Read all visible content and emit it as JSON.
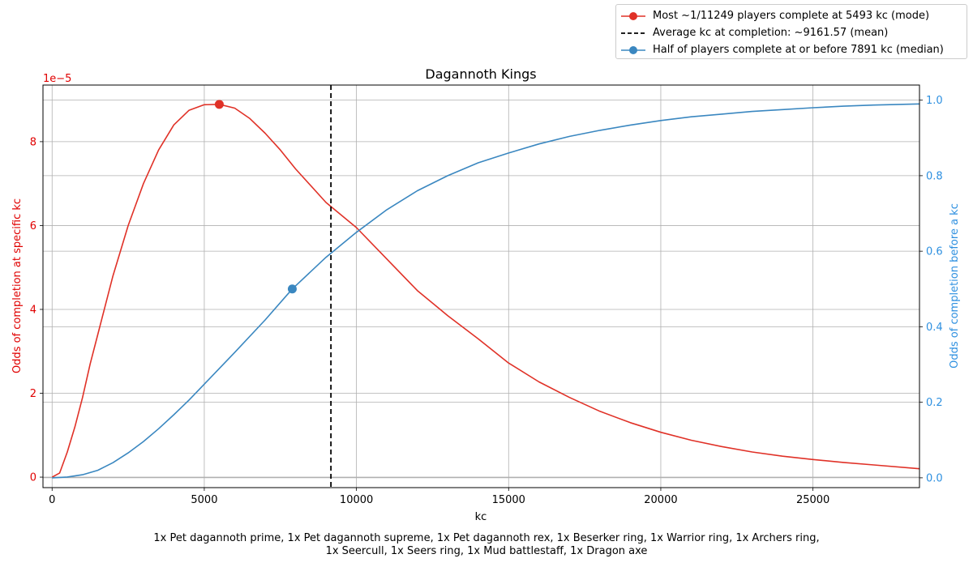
{
  "chart_data": {
    "type": "line",
    "title": "Dagannoth Kings",
    "xlabel": "kc",
    "ylabel_left": "Odds of completion at specific kc",
    "ylabel_right": "Odds of completion before a kc",
    "left_axis_offset_label": "1e−5",
    "xlim": [
      -300,
      28500
    ],
    "ylim_left": [
      -0.25,
      9.35
    ],
    "ylim_right": [
      -0.026,
      1.04
    ],
    "x_ticks": [
      0,
      5000,
      10000,
      15000,
      20000,
      25000
    ],
    "x_tick_labels": [
      "0",
      "5000",
      "10000",
      "15000",
      "20000",
      "25000"
    ],
    "y_left_ticks": [
      0,
      2,
      4,
      6,
      8
    ],
    "y_left_tick_labels": [
      "0",
      "2",
      "4",
      "6",
      "8"
    ],
    "y_right_ticks": [
      0.0,
      0.2,
      0.4,
      0.6,
      0.8,
      1.0
    ],
    "y_right_tick_labels": [
      "0.0",
      "0.2",
      "0.4",
      "0.6",
      "0.8",
      "1.0"
    ],
    "grid": true,
    "legend_placement": "top-right, outside plot",
    "colors": {
      "pdf": "#e03127",
      "cdf": "#3a87c0",
      "mean": "#000000",
      "left_axis": "#e00000",
      "right_axis": "#2e90e0",
      "grid": "#b0b0b0"
    },
    "series": [
      {
        "name": "Most ~1/11249 players complete at 5493 kc (mode)",
        "axis": "left",
        "x": [
          0,
          250,
          500,
          750,
          1000,
          1250,
          1500,
          2000,
          2500,
          3000,
          3500,
          4000,
          4500,
          5000,
          5493,
          6000,
          6500,
          7000,
          7500,
          8000,
          9000,
          10000,
          11000,
          12000,
          13000,
          14000,
          15000,
          16000,
          17000,
          18000,
          19000,
          20000,
          21000,
          22000,
          23000,
          24000,
          25000,
          26000,
          27000,
          28500
        ],
        "values": [
          0,
          0.1,
          0.6,
          1.2,
          1.9,
          2.7,
          3.4,
          4.8,
          6.0,
          7.0,
          7.8,
          8.4,
          8.75,
          8.88,
          8.89,
          8.8,
          8.55,
          8.2,
          7.8,
          7.35,
          6.55,
          5.95,
          5.2,
          4.45,
          3.85,
          3.3,
          2.72,
          2.27,
          1.9,
          1.57,
          1.3,
          1.07,
          0.88,
          0.73,
          0.6,
          0.5,
          0.42,
          0.35,
          0.29,
          0.2
        ],
        "marker": {
          "x": 5493,
          "y": 8.89
        }
      },
      {
        "name": "Half of players complete at or before 7891 kc (median)",
        "axis": "right",
        "x": [
          0,
          500,
          1000,
          1500,
          2000,
          2500,
          3000,
          3500,
          4000,
          4500,
          5000,
          5500,
          6000,
          7000,
          7891,
          9000,
          10000,
          11000,
          12000,
          13000,
          14000,
          15000,
          16000,
          17000,
          18000,
          19000,
          20000,
          21000,
          22000,
          23000,
          24000,
          25000,
          26000,
          27000,
          28500
        ],
        "values": [
          0,
          0.002,
          0.008,
          0.02,
          0.04,
          0.066,
          0.096,
          0.13,
          0.167,
          0.206,
          0.248,
          0.29,
          0.332,
          0.418,
          0.5,
          0.584,
          0.65,
          0.71,
          0.76,
          0.8,
          0.834,
          0.86,
          0.884,
          0.904,
          0.92,
          0.934,
          0.946,
          0.956,
          0.963,
          0.97,
          0.975,
          0.98,
          0.984,
          0.987,
          0.99
        ],
        "marker": {
          "x": 7891,
          "y": 0.5
        }
      }
    ],
    "mean_line": {
      "name": "Average kc at completion: ~9161.57 (mean)",
      "x": 9161.57
    },
    "footnote_lines": [
      "1x Pet dagannoth prime, 1x Pet dagannoth supreme, 1x Pet dagannoth rex, 1x Beserker ring, 1x Warrior ring, 1x Archers ring,",
      "1x Seercull, 1x Seers ring, 1x Mud battlestaff, 1x Dragon axe"
    ]
  }
}
